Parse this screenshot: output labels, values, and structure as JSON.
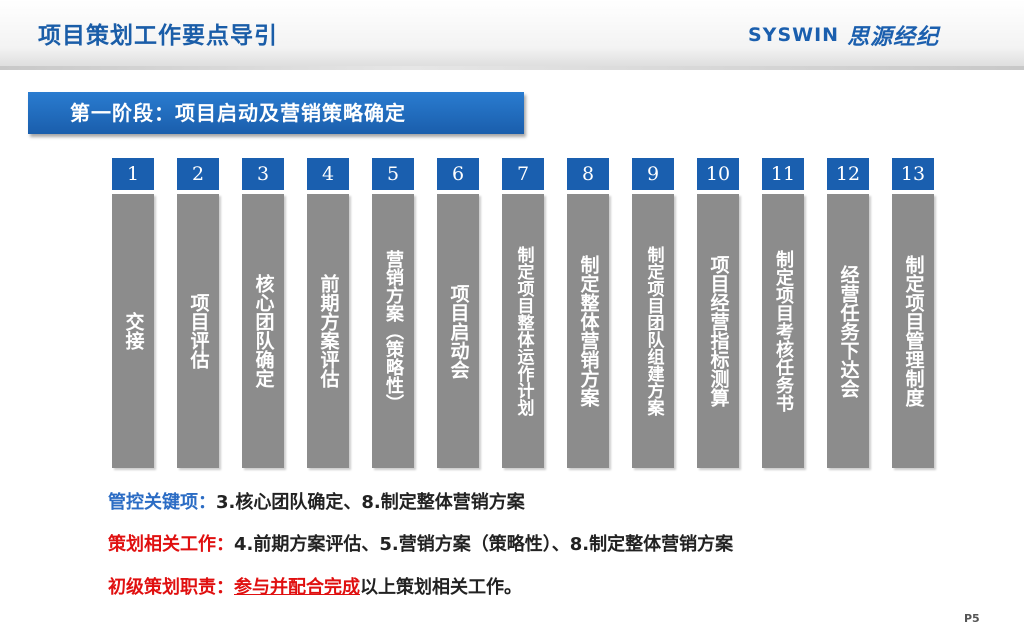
{
  "header": {
    "title": "项目策划工作要点导引",
    "logo_latin": "SYSWIN",
    "logo_cn": "思源经纪"
  },
  "stage": {
    "label": "第一阶段：项目启动及营销策略确定"
  },
  "steps": [
    {
      "num": "1",
      "text": "交接"
    },
    {
      "num": "2",
      "text": "项目评估"
    },
    {
      "num": "3",
      "text": "核心团队确定"
    },
    {
      "num": "4",
      "text": "前期方案评估"
    },
    {
      "num": "5",
      "text": "营销方案（策略性）"
    },
    {
      "num": "6",
      "text": "项目启动会"
    },
    {
      "num": "7",
      "text": "制定项目整体运作计划"
    },
    {
      "num": "8",
      "text": "制定整体营销方案"
    },
    {
      "num": "9",
      "text": "制定项目团队组建方案"
    },
    {
      "num": "10",
      "text": "项目经营指标测算"
    },
    {
      "num": "11",
      "text": "制定项目考核任务书"
    },
    {
      "num": "12",
      "text": "经营任务下达会"
    },
    {
      "num": "13",
      "text": "制定项目管理制度"
    }
  ],
  "notes": {
    "key_label": "管控关键项：",
    "key_text": "3.核心团队确定、8.制定整体营销方案",
    "related_label": "策划相关工作：",
    "related_text": "4.前期方案评估、5.营销方案（策略性）、8.制定整体营销方案",
    "duty_label": "初级策划职责：",
    "duty_emph": "参与并配合完成",
    "duty_text": "以上策划相关工作。"
  },
  "page_number": "P5",
  "colors": {
    "title_blue": "#1a5da8",
    "stage_blue": "#1a5eac",
    "step_gray": "#8c8c8c",
    "label_red": "#e01010"
  }
}
